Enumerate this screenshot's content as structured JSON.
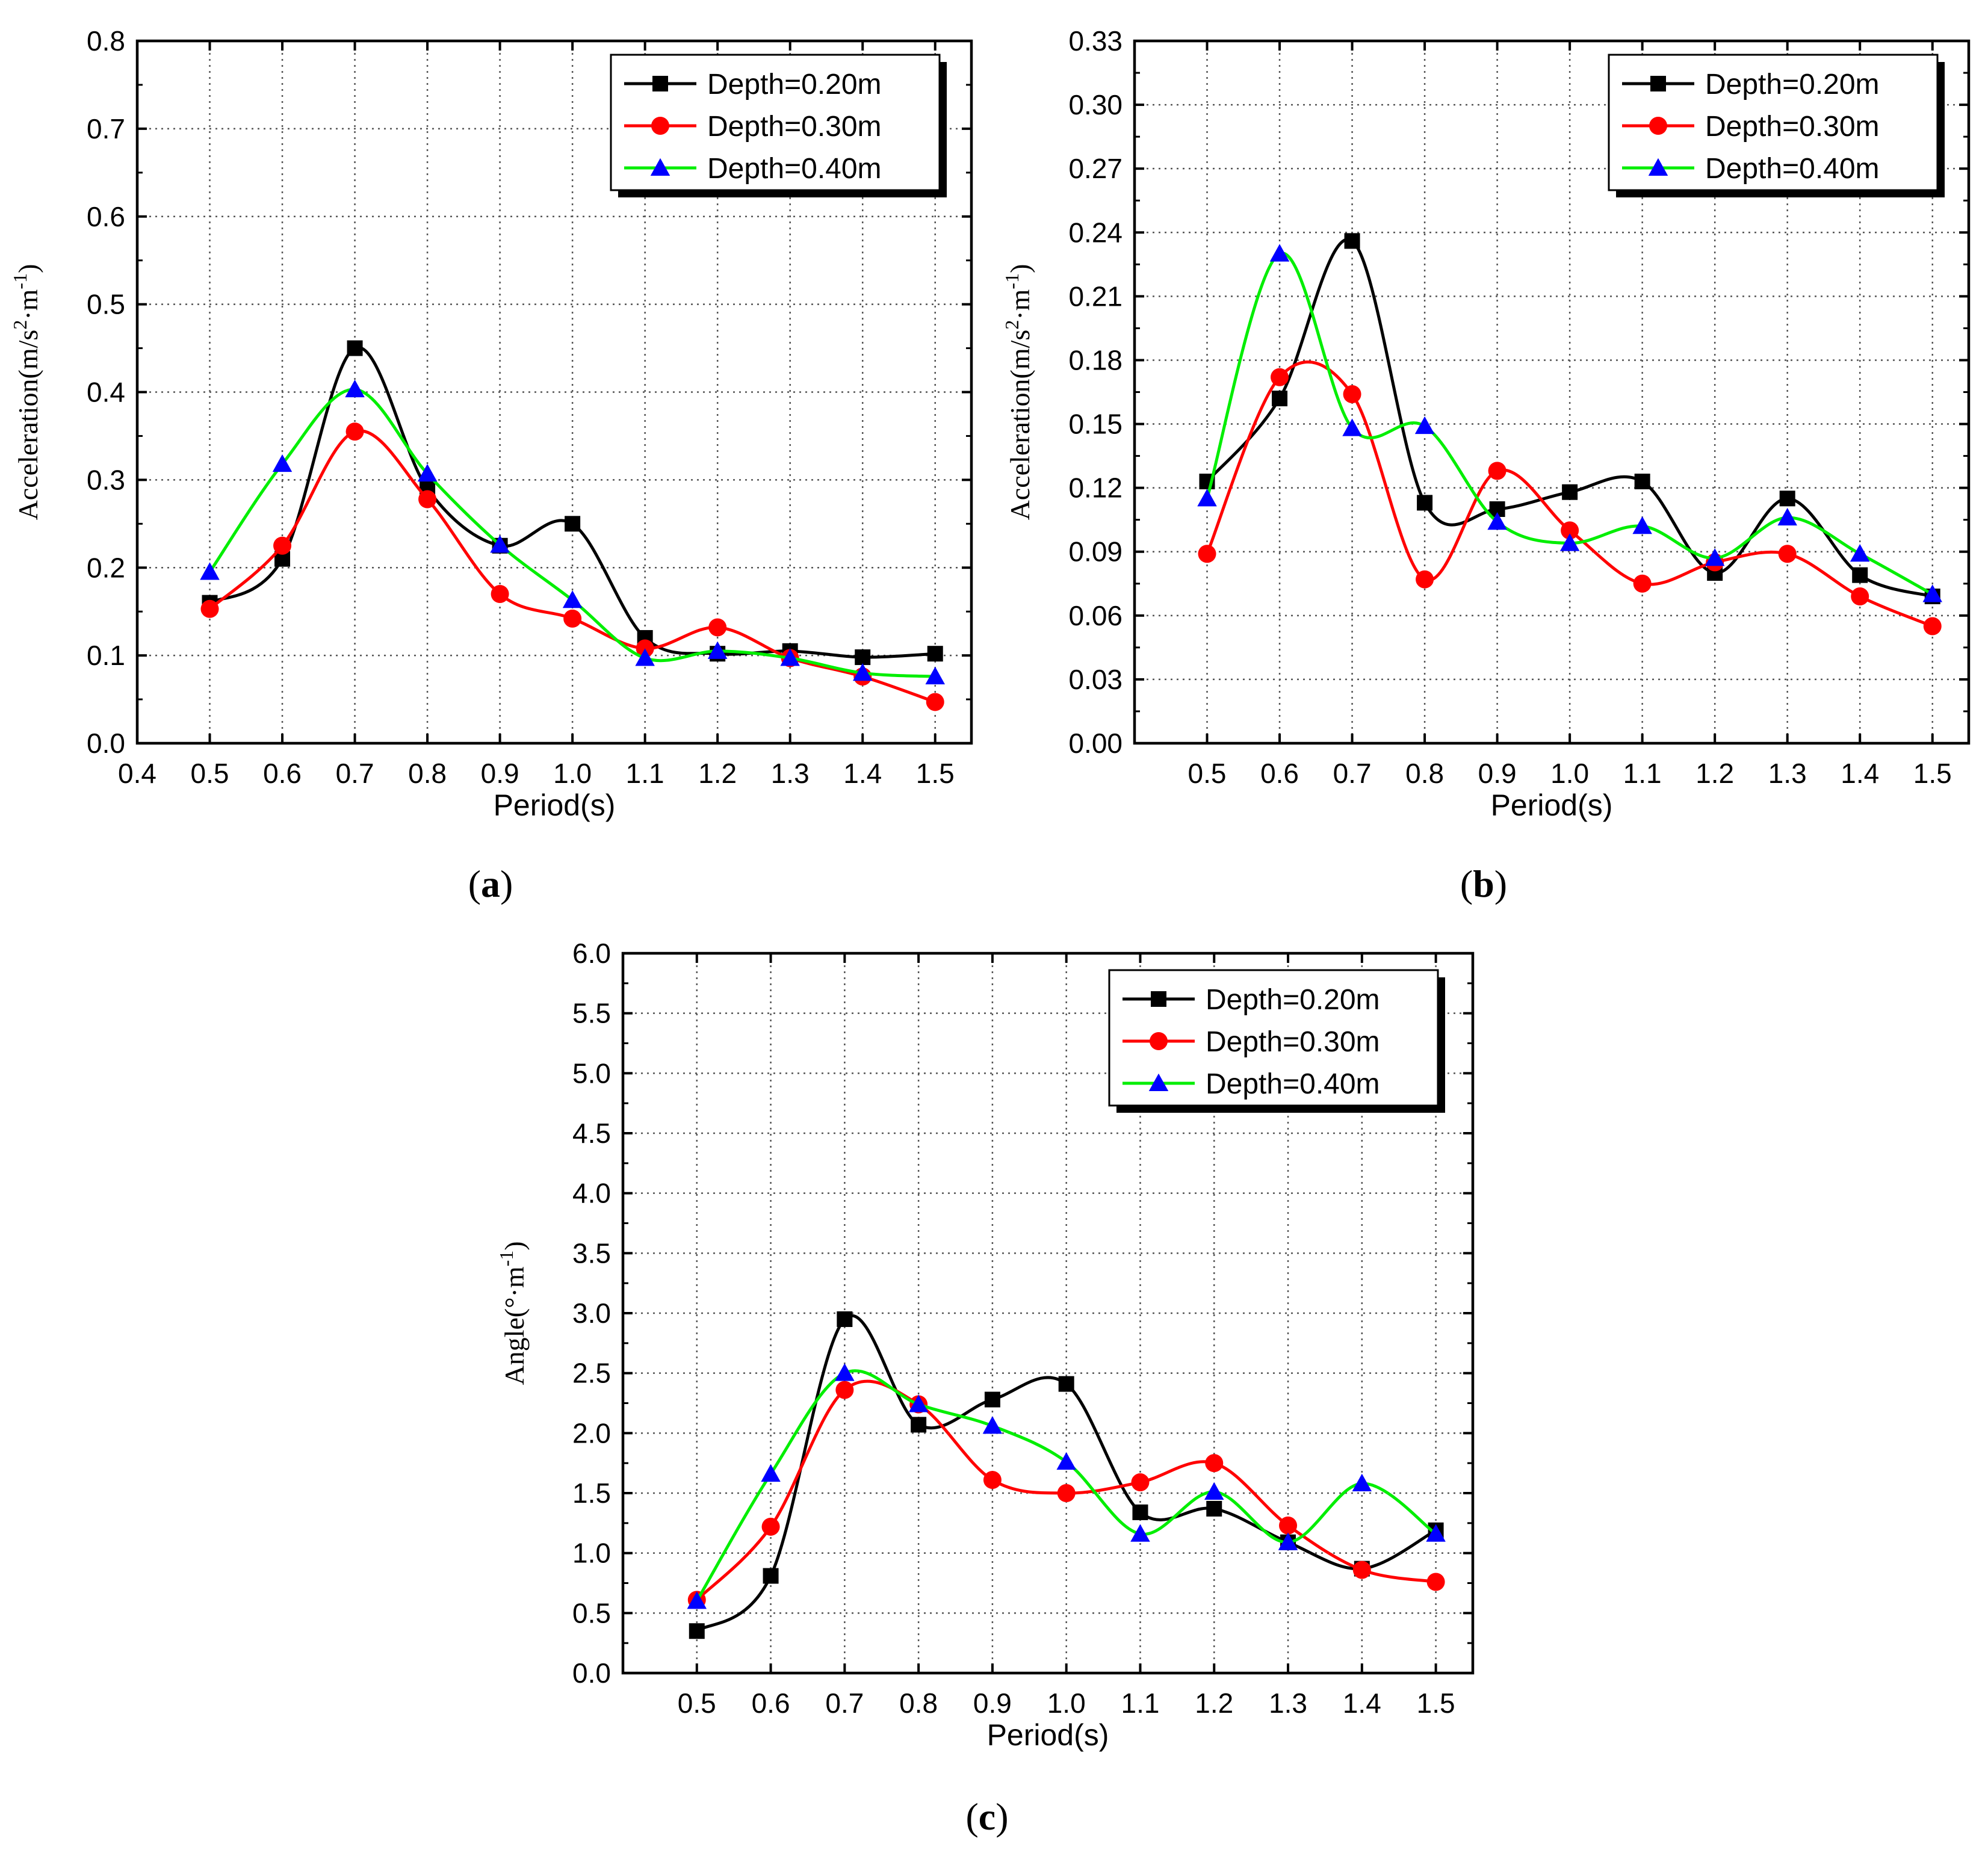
{
  "chart_data": [
    {
      "panel_label": "a",
      "type": "line",
      "xlabel": "Period(s)",
      "ylabel": "Acceleration(m/s²·m⁻¹)",
      "ylabel_parts": [
        "Acceleration(m/s",
        "2",
        "·m",
        "-1",
        ")"
      ],
      "xlim": [
        0.4,
        1.55
      ],
      "ylim": [
        0.0,
        0.8
      ],
      "xticks": [
        "0.4",
        "0.5",
        "0.6",
        "0.7",
        "0.8",
        "0.9",
        "1.0",
        "1.1",
        "1.2",
        "1.3",
        "1.4",
        "1.5"
      ],
      "yticks": [
        "0.0",
        "0.1",
        "0.2",
        "0.3",
        "0.4",
        "0.5",
        "0.6",
        "0.7",
        "0.8"
      ],
      "grid": true,
      "legend_position": "top-right",
      "x": [
        0.5,
        0.6,
        0.7,
        0.8,
        0.9,
        1.0,
        1.1,
        1.2,
        1.3,
        1.4,
        1.5
      ],
      "series": [
        {
          "name": "Depth=0.20m",
          "color": "#000000",
          "marker": "square",
          "values": [
            0.16,
            0.21,
            0.45,
            0.29,
            0.225,
            0.25,
            0.12,
            0.102,
            0.105,
            0.098,
            0.102
          ]
        },
        {
          "name": "Depth=0.30m",
          "color": "#ff0000",
          "marker": "circle",
          "values": [
            0.153,
            0.225,
            0.355,
            0.278,
            0.17,
            0.142,
            0.108,
            0.132,
            0.097,
            0.076,
            0.047
          ]
        },
        {
          "name": "Depth=0.40m",
          "color": "#00ee00",
          "marker": "triangle",
          "values": [
            0.195,
            0.318,
            0.403,
            0.307,
            0.226,
            0.163,
            0.097,
            0.105,
            0.097,
            0.08,
            0.076
          ]
        }
      ]
    },
    {
      "panel_label": "b",
      "type": "line",
      "xlabel": "Period(s)",
      "ylabel": "Acceleration(m/s²·m⁻¹)",
      "ylabel_parts": [
        "Acceleration(m/s",
        "2",
        "·m",
        "-1",
        ")"
      ],
      "xlim": [
        0.4,
        1.55
      ],
      "ylim": [
        0.0,
        0.33
      ],
      "xticks": [
        "0.5",
        "0.6",
        "0.7",
        "0.8",
        "0.9",
        "1.0",
        "1.1",
        "1.2",
        "1.3",
        "1.4",
        "1.5"
      ],
      "yticks": [
        "0.00",
        "0.03",
        "0.06",
        "0.09",
        "0.12",
        "0.15",
        "0.18",
        "0.21",
        "0.24",
        "0.27",
        "0.30",
        "0.33"
      ],
      "grid": true,
      "legend_position": "top-right",
      "x": [
        0.5,
        0.6,
        0.7,
        0.8,
        0.9,
        1.0,
        1.1,
        1.2,
        1.3,
        1.4,
        1.5
      ],
      "series": [
        {
          "name": "Depth=0.20m",
          "color": "#000000",
          "marker": "square",
          "values": [
            0.123,
            0.162,
            0.236,
            0.113,
            0.11,
            0.118,
            0.123,
            0.08,
            0.115,
            0.079,
            0.069
          ]
        },
        {
          "name": "Depth=0.30m",
          "color": "#ff0000",
          "marker": "circle",
          "values": [
            0.089,
            0.172,
            0.164,
            0.077,
            0.128,
            0.1,
            0.075,
            0.085,
            0.089,
            0.069,
            0.055
          ]
        },
        {
          "name": "Depth=0.40m",
          "color": "#00ee00",
          "marker": "triangle",
          "values": [
            0.115,
            0.23,
            0.148,
            0.149,
            0.104,
            0.094,
            0.102,
            0.087,
            0.106,
            0.089,
            0.07
          ]
        }
      ]
    },
    {
      "panel_label": "c",
      "type": "line",
      "xlabel": "Period(s)",
      "ylabel": "Angle(°·m⁻¹)",
      "ylabel_parts": [
        "Angle(°·m",
        "-1",
        ")"
      ],
      "xlim": [
        0.4,
        1.55
      ],
      "ylim": [
        0.0,
        6.0
      ],
      "xticks": [
        "0.5",
        "0.6",
        "0.7",
        "0.8",
        "0.9",
        "1.0",
        "1.1",
        "1.2",
        "1.3",
        "1.4",
        "1.5"
      ],
      "yticks": [
        "0.0",
        "0.5",
        "1.0",
        "1.5",
        "2.0",
        "2.5",
        "3.0",
        "3.5",
        "4.0",
        "4.5",
        "5.0",
        "5.5",
        "6.0"
      ],
      "grid": true,
      "legend_position": "top-right",
      "x": [
        0.5,
        0.6,
        0.7,
        0.8,
        0.9,
        1.0,
        1.1,
        1.2,
        1.3,
        1.4,
        1.5
      ],
      "series": [
        {
          "name": "Depth=0.20m",
          "color": "#000000",
          "marker": "square",
          "values": [
            0.35,
            0.81,
            2.95,
            2.07,
            2.28,
            2.41,
            1.34,
            1.37,
            1.09,
            0.87,
            1.19
          ]
        },
        {
          "name": "Depth=0.30m",
          "color": "#ff0000",
          "marker": "circle",
          "values": [
            0.61,
            1.22,
            2.36,
            2.24,
            1.61,
            1.5,
            1.59,
            1.75,
            1.23,
            0.86,
            0.76
          ]
        },
        {
          "name": "Depth=0.40m",
          "color": "#00ee00",
          "marker": "triangle",
          "values": [
            0.6,
            1.66,
            2.5,
            2.24,
            2.06,
            1.76,
            1.16,
            1.51,
            1.09,
            1.58,
            1.16
          ]
        }
      ]
    }
  ]
}
